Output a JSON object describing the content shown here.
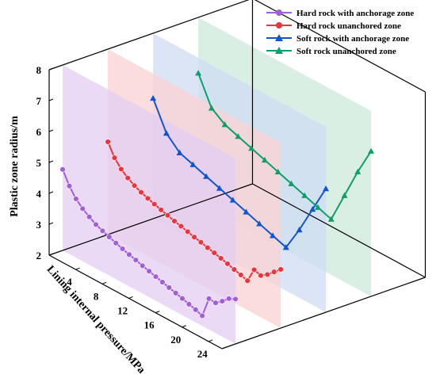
{
  "chart_data": {
    "type": "line",
    "subtype": "3d-waterfall",
    "x_axis": {
      "label": "Lining internal pressure/MPa",
      "ticks": [
        4,
        8,
        12,
        16,
        20,
        24
      ],
      "range": [
        0,
        26
      ]
    },
    "z_axis": {
      "label": "Plastic zone radius/m",
      "ticks": [
        2,
        3,
        4,
        5,
        6,
        7,
        8
      ],
      "range": [
        2,
        8
      ]
    },
    "legend_position": "top-right",
    "series": [
      {
        "name": "Hard rock with anchorage zone",
        "color": "#a15ed6",
        "plane_color": "#e3cdf3",
        "marker": "circle",
        "x": [
          0,
          1,
          2,
          3,
          4,
          5,
          6,
          7,
          8,
          9,
          10,
          11,
          12,
          13,
          14,
          15,
          16,
          17,
          18,
          19,
          20,
          21,
          22,
          23,
          24,
          25,
          26
        ],
        "y": [
          4.62,
          4.2,
          3.9,
          3.7,
          3.55,
          3.42,
          3.33,
          3.25,
          3.17,
          3.1,
          3.03,
          2.97,
          2.9,
          2.84,
          2.78,
          2.72,
          2.66,
          2.6,
          2.54,
          2.47,
          2.41,
          2.33,
          3.0,
          2.98,
          3.15,
          3.35,
          3.45
        ]
      },
      {
        "name": "Hard rock unanchored zone",
        "color": "#e8363c",
        "plane_color": "#fbd1d3",
        "marker": "circle",
        "x": [
          0,
          1,
          2,
          3,
          4,
          5,
          6,
          7,
          8,
          9,
          10,
          11,
          12,
          13,
          14,
          15,
          16,
          17,
          18,
          19,
          20,
          21,
          22,
          23,
          24,
          25,
          26
        ],
        "y": [
          5.0,
          4.6,
          4.35,
          4.18,
          4.05,
          3.95,
          3.87,
          3.8,
          3.73,
          3.67,
          3.6,
          3.55,
          3.49,
          3.43,
          3.38,
          3.32,
          3.27,
          3.21,
          3.15,
          3.08,
          3.02,
          2.95,
          3.42,
          3.35,
          3.5,
          3.7,
          3.9
        ]
      },
      {
        "name": "Soft rock with anchorage zone",
        "color": "#1155cc",
        "plane_color": "#cfdcf3",
        "marker": "triangle",
        "x": [
          0,
          2,
          4,
          6,
          8,
          10,
          12,
          14,
          16,
          18,
          20,
          22,
          24,
          26
        ],
        "y": [
          5.9,
          5.0,
          4.6,
          4.45,
          4.3,
          4.15,
          4.0,
          3.85,
          3.7,
          3.55,
          3.4,
          4.2,
          5.1,
          6.0
        ]
      },
      {
        "name": "Soft rock unanchored zone",
        "color": "#0e9e6b",
        "plane_color": "#cdeadb",
        "marker": "triangle",
        "x": [
          0,
          2,
          4,
          6,
          8,
          10,
          12,
          14,
          16,
          18,
          20,
          22,
          24,
          26
        ],
        "y": [
          6.2,
          5.3,
          5.0,
          4.85,
          4.7,
          4.55,
          4.4,
          4.25,
          4.1,
          3.95,
          3.8,
          4.8,
          5.8,
          6.7
        ]
      }
    ]
  }
}
